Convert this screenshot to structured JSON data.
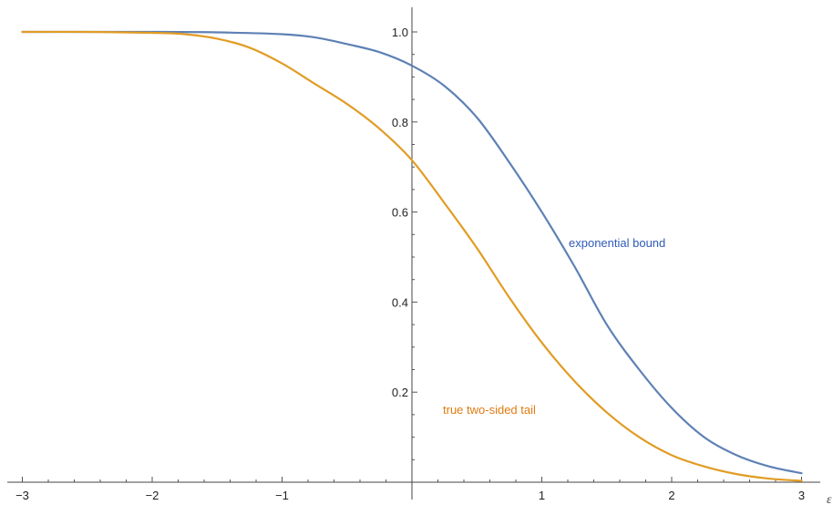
{
  "chart_data": {
    "type": "line",
    "xlabel": "ε",
    "ylabel": "",
    "xlim": [
      -3,
      3
    ],
    "ylim": [
      0,
      1.0
    ],
    "grid": false,
    "x_ticks": [
      {
        "value": -3,
        "label": "−3"
      },
      {
        "value": -2,
        "label": "−2"
      },
      {
        "value": -1,
        "label": "−1"
      },
      {
        "value": 1,
        "label": "1"
      },
      {
        "value": 2,
        "label": "2"
      },
      {
        "value": 3,
        "label": "3"
      }
    ],
    "y_ticks": [
      {
        "value": 0.2,
        "label": "0.2"
      },
      {
        "value": 0.4,
        "label": "0.4"
      },
      {
        "value": 0.6,
        "label": "0.6"
      },
      {
        "value": 0.8,
        "label": "0.8"
      },
      {
        "value": 1.0,
        "label": "1.0"
      }
    ],
    "series": [
      {
        "name": "exponential bound",
        "color": "#5e81b5",
        "label_color": "#2f5bb7",
        "x": [
          -3,
          -2.5,
          -2,
          -1.5,
          -1,
          -0.75,
          -0.5,
          -0.25,
          0,
          0.25,
          0.5,
          0.75,
          1,
          1.25,
          1.5,
          1.75,
          2,
          2.25,
          2.5,
          2.75,
          3
        ],
        "values": [
          1.0,
          1.0,
          1.0,
          0.999,
          0.995,
          0.988,
          0.973,
          0.955,
          0.925,
          0.88,
          0.81,
          0.71,
          0.6,
          0.48,
          0.35,
          0.25,
          0.165,
          0.1,
          0.06,
          0.035,
          0.02
        ]
      },
      {
        "name": "true two-sided tail",
        "color": "#e19c24",
        "label_color": "#e07b10",
        "x": [
          -3,
          -2.5,
          -2,
          -1.75,
          -1.5,
          -1.25,
          -1,
          -0.75,
          -0.5,
          -0.25,
          0,
          0.25,
          0.5,
          0.75,
          1,
          1.25,
          1.5,
          1.75,
          2,
          2.25,
          2.5,
          2.75,
          3
        ],
        "values": [
          1.0,
          1.0,
          0.998,
          0.995,
          0.985,
          0.965,
          0.93,
          0.885,
          0.84,
          0.785,
          0.715,
          0.62,
          0.52,
          0.41,
          0.31,
          0.225,
          0.155,
          0.1,
          0.06,
          0.035,
          0.018,
          0.008,
          0.003
        ]
      }
    ]
  }
}
